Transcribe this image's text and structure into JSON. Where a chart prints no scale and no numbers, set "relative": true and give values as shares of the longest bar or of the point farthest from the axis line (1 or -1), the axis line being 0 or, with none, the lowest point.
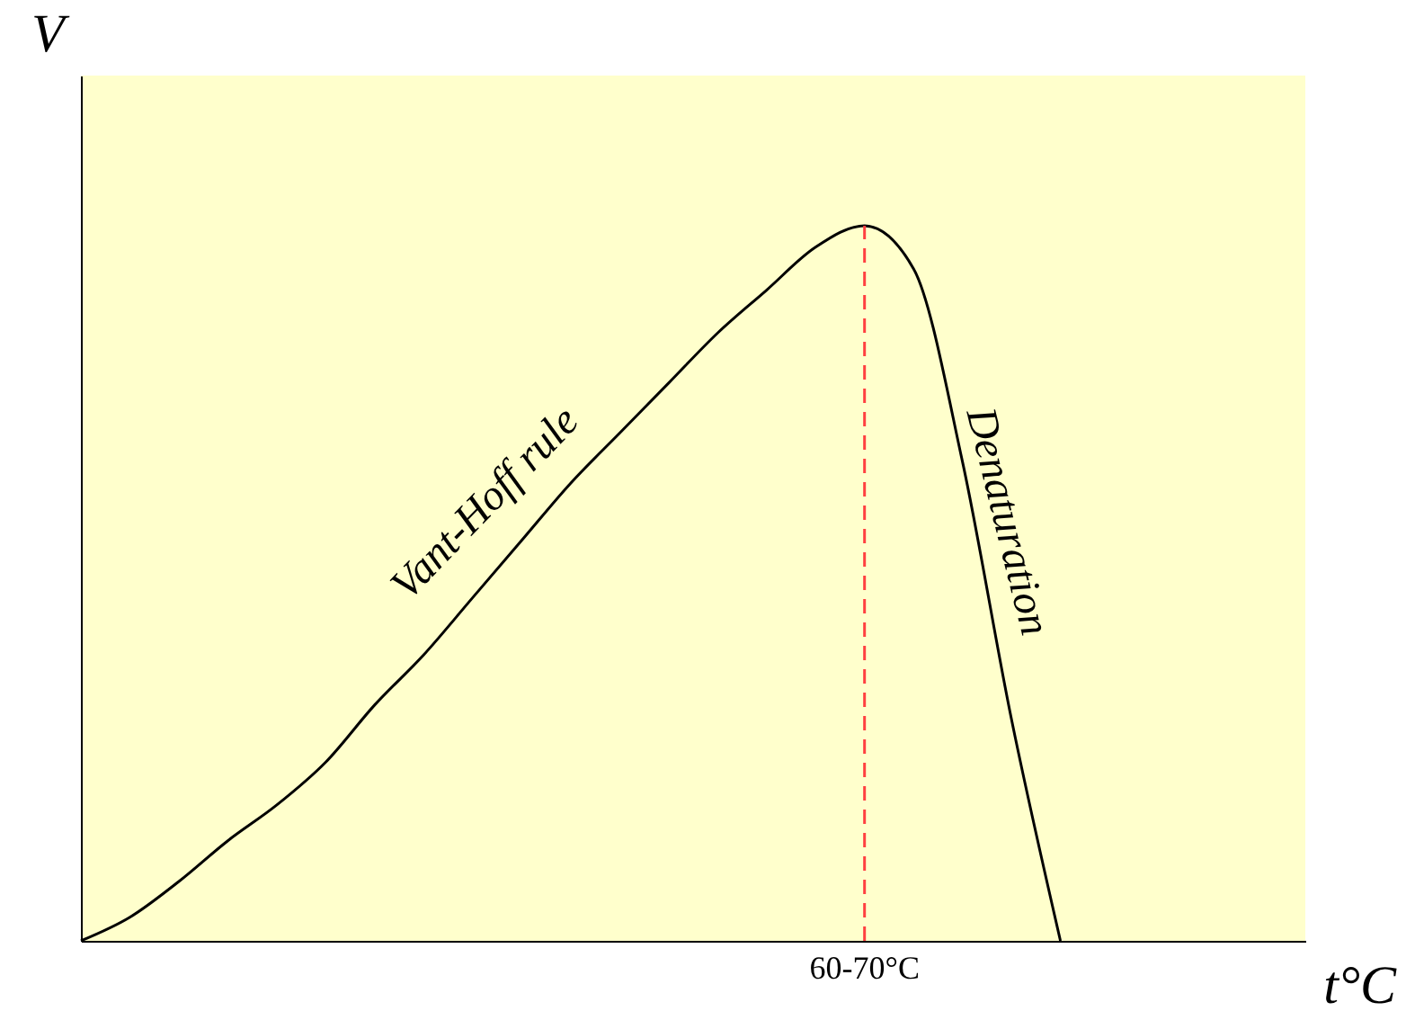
{
  "chart_data": {
    "type": "line",
    "relative": true,
    "xlabel": "t°C",
    "ylabel": "V",
    "categories": [
      null,
      null,
      null,
      null,
      null,
      null,
      null,
      null,
      null,
      null,
      null,
      null,
      null,
      null,
      null,
      null,
      null,
      null,
      null,
      null,
      null,
      null,
      null,
      null,
      null,
      null
    ],
    "series": [
      {
        "color": "#000000",
        "values": [
          0,
          0.033,
          0.083,
          0.14,
          0.19,
          0.25,
          0.33,
          0.4,
          0.48,
          0.56,
          0.64,
          0.71,
          0.78,
          0.85,
          0.91,
          0.97,
          1.0,
          0.94,
          0.67,
          0.31,
          0,
          null,
          null,
          null,
          null,
          null
        ]
      }
    ],
    "annotations": [
      "Vant-Hoff rule",
      "Denaturation",
      "60-70°C"
    ],
    "grid": false,
    "marker": "none",
    "line_style": "solid"
  }
}
